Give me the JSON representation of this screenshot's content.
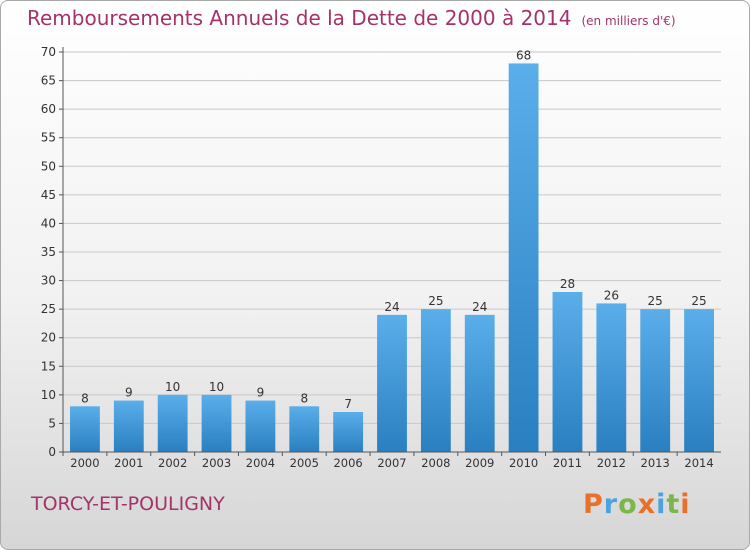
{
  "header": {
    "title": "Remboursements Annuels de la Dette de 2000 à 2014",
    "unit": "(en milliers d'€)"
  },
  "footer": {
    "commune": "TORCY-ET-POULIGNY",
    "logo": "Proxiti",
    "logo_colors": [
      "#e8702a",
      "#4aa3df",
      "#7ab648",
      "#e8702a",
      "#4aa3df",
      "#7ab648",
      "#e8702a"
    ]
  },
  "colors": {
    "bar_top": "#5aaeea",
    "bar_bottom": "#2a7fc0",
    "grid": "#c8c8c8",
    "text": "#333333",
    "accent": "#a3336a"
  },
  "chart_data": {
    "type": "bar",
    "title": "Remboursements Annuels de la Dette de 2000 à 2014",
    "xlabel": "",
    "ylabel": "",
    "categories": [
      "2000",
      "2001",
      "2002",
      "2003",
      "2004",
      "2005",
      "2006",
      "2007",
      "2008",
      "2009",
      "2010",
      "2011",
      "2012",
      "2013",
      "2014"
    ],
    "values": [
      8,
      9,
      10,
      10,
      9,
      8,
      7,
      24,
      25,
      24,
      68,
      28,
      26,
      25,
      25
    ],
    "ylim": [
      0,
      70
    ],
    "yticks": [
      0,
      5,
      10,
      15,
      20,
      25,
      30,
      35,
      40,
      45,
      50,
      55,
      60,
      65,
      70
    ],
    "grid": true,
    "legend": "none"
  }
}
